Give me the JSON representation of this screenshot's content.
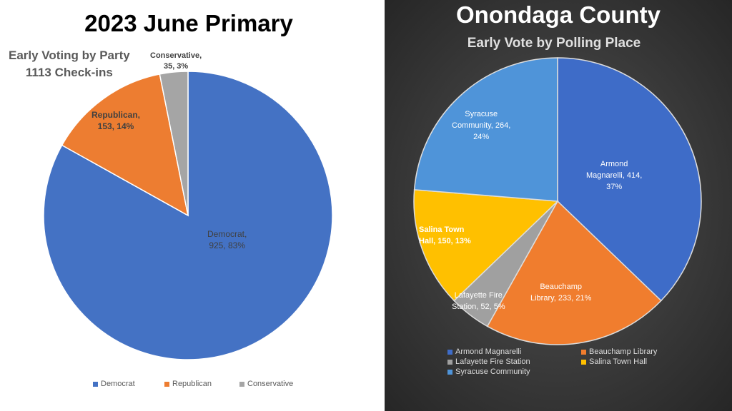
{
  "chart_data": [
    {
      "type": "pie",
      "title": "2023 June Primary",
      "subtitle": "Early Voting by Party",
      "subtitle2": "1113 Check-ins",
      "categories": [
        "Democrat",
        "Republican",
        "Conservative"
      ],
      "values": [
        925,
        153,
        35
      ],
      "data_labels": [
        [
          "Democrat,",
          "925, 83%"
        ],
        [
          "Republican,",
          "153, 14%"
        ],
        [
          "Conservative,",
          "35, 3%"
        ]
      ],
      "colors": [
        "#4472C4",
        "#ED7D31",
        "#A5A5A5"
      ],
      "legend": "bottom"
    },
    {
      "type": "pie",
      "title": "Onondaga County",
      "subtitle": "Early Vote by Polling Place",
      "categories": [
        "Armond Magnarelli",
        "Beauchamp Library",
        "Lafayette Fire Station",
        "Salina Town Hall",
        "Syracuse Community"
      ],
      "values": [
        414,
        233,
        52,
        150,
        264
      ],
      "data_labels": [
        [
          "Armond",
          "Magnarelli, 414,",
          "37%"
        ],
        [
          "Beauchamp",
          "Library, 233, 21%"
        ],
        [
          "Lafayette Fire",
          "Station, 52, 5%"
        ],
        [
          "Salina Town",
          "Hall, 150, 13%"
        ],
        [
          "Syracuse",
          "Community, 264,",
          "24%"
        ]
      ],
      "colors": [
        "#3E6CC8",
        "#F07D2E",
        "#A0A0A0",
        "#FFC000",
        "#4F94D9"
      ],
      "legend": "bottom"
    }
  ]
}
